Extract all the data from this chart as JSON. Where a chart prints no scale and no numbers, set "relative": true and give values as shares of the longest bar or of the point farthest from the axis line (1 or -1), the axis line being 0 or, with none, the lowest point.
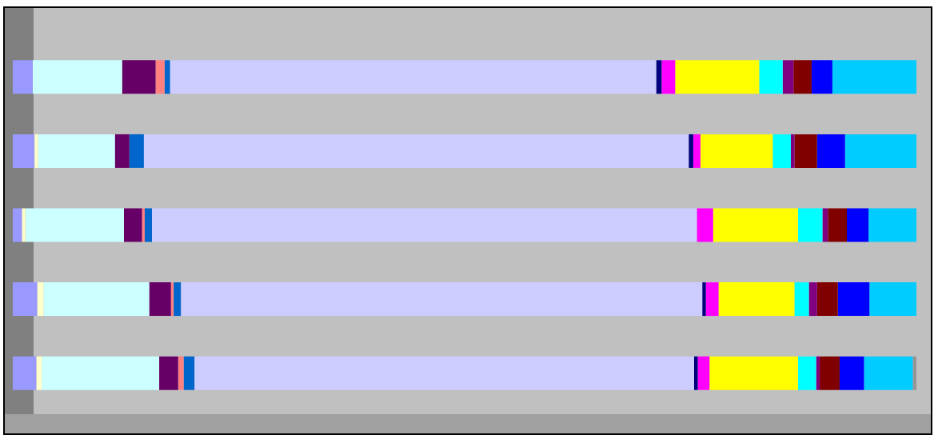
{
  "chart_data": {
    "type": "bar",
    "orientation": "horizontal",
    "stacked": true,
    "relative": true,
    "categories": [
      null,
      null,
      null,
      null,
      null
    ],
    "series": [
      {
        "color": "#9999ff",
        "values": [
          0.022,
          0.024,
          0.01,
          0.027,
          0.026
        ]
      },
      {
        "color": "#ffffcc",
        "values": [
          null,
          0.004,
          0.004,
          0.007,
          0.006
        ]
      },
      {
        "color": "#ccffff",
        "values": [
          0.099,
          0.085,
          0.109,
          0.117,
          0.13
        ]
      },
      {
        "color": "#660066",
        "values": [
          0.037,
          0.016,
          0.02,
          0.024,
          0.021
        ]
      },
      {
        "color": "#ff8080",
        "values": [
          0.01,
          null,
          0.003,
          0.003,
          0.006
        ]
      },
      {
        "color": "#0066cc",
        "values": [
          0.006,
          0.016,
          0.008,
          0.008,
          0.012
        ]
      },
      {
        "color": "#ccccff",
        "values": [
          0.538,
          0.603,
          0.603,
          0.577,
          0.553
        ]
      },
      {
        "color": "#000080",
        "values": [
          0.006,
          0.005,
          null,
          0.004,
          0.004
        ]
      },
      {
        "color": "#ff00ff",
        "values": [
          0.015,
          0.008,
          0.018,
          0.014,
          0.013
        ]
      },
      {
        "color": "#ffff00",
        "values": [
          0.093,
          0.08,
          0.094,
          0.084,
          0.098
        ]
      },
      {
        "color": "#00ffff",
        "values": [
          0.026,
          0.02,
          0.027,
          0.016,
          0.02
        ]
      },
      {
        "color": "#800080",
        "values": [
          0.012,
          0.004,
          0.006,
          0.009,
          0.004
        ]
      },
      {
        "color": "#800000",
        "values": [
          0.02,
          0.025,
          0.021,
          0.023,
          0.022
        ]
      },
      {
        "color": "#0000ff",
        "values": [
          0.023,
          0.031,
          0.024,
          0.035,
          0.027
        ]
      },
      {
        "color": "#00ccff",
        "values": [
          0.093,
          0.079,
          0.053,
          0.052,
          0.054
        ]
      },
      {
        "color": "#969696",
        "values": [
          null,
          null,
          null,
          null,
          0.004
        ]
      }
    ]
  }
}
